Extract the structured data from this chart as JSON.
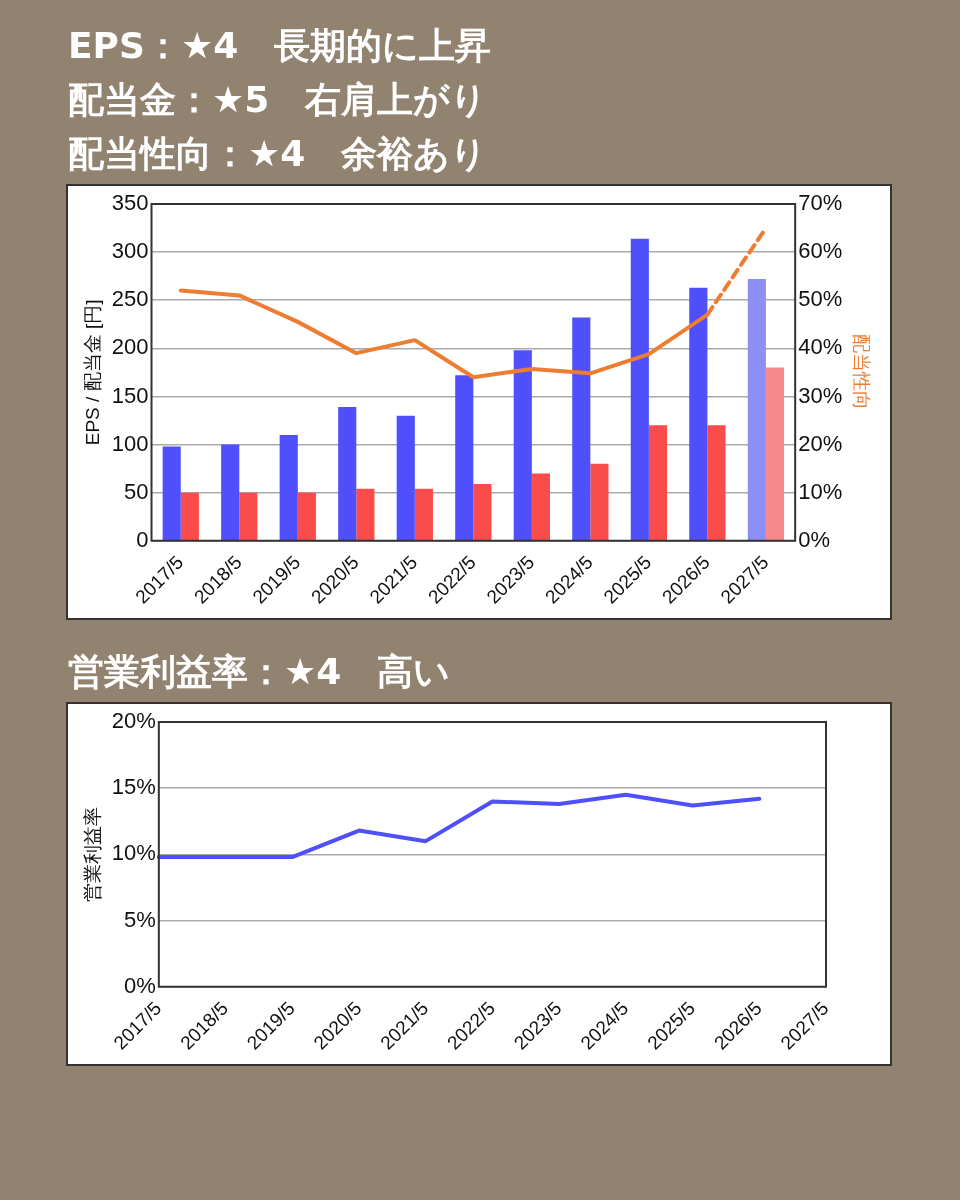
{
  "chart_data": [
    {
      "type": "bar",
      "title": "EPS：★4　長期的に上昇",
      "subtitle": "配当金：★5　右肩上がり",
      "annotations": [
        "配当性向：★4　余裕あり"
      ],
      "ylabel": "EPS / 配当金 [円]",
      "y2label": "配当性向",
      "categories": [
        "2017/5",
        "2018/5",
        "2019/5",
        "2020/5",
        "2021/5",
        "2022/5",
        "2023/5",
        "2024/5",
        "2025/5",
        "2026/5",
        "2027/5"
      ],
      "series": [
        {
          "colors": [
            "#4f4ffb",
            "#4f4ffb",
            "#4f4ffb",
            "#4f4ffb",
            "#4f4ffb",
            "#4f4ffb",
            "#4f4ffb",
            "#4f4ffb",
            "#4f4ffb",
            "#4f4ffb",
            "#8e8ef7"
          ],
          "values": [
            98,
            100,
            110,
            139,
            130,
            172,
            198,
            232,
            314,
            263,
            272
          ]
        },
        {
          "colors": [
            "#fb4c4c",
            "#fb4c4c",
            "#fb4c4c",
            "#fb4c4c",
            "#fb4c4c",
            "#fb4c4c",
            "#fb4c4c",
            "#fb4c4c",
            "#fb4c4c",
            "#fb4c4c",
            "#f7898e"
          ],
          "values": [
            50,
            50,
            50,
            54,
            54,
            59,
            70,
            80,
            120,
            120,
            180
          ]
        },
        {
          "type": "line",
          "axis": "y2",
          "color": "#ed7d31",
          "line_style": "solid",
          "values": [
            52,
            51,
            45.5,
            39,
            41.7,
            34,
            35.7,
            34.8,
            38.8,
            47,
            null
          ]
        },
        {
          "type": "line",
          "axis": "y2",
          "color": "#ed7d31",
          "line_style": "dashed",
          "values": [
            null,
            null,
            null,
            null,
            null,
            null,
            null,
            null,
            null,
            47,
            65
          ]
        }
      ],
      "ylim": [
        0,
        350
      ],
      "yticks": [
        0,
        50,
        100,
        150,
        200,
        250,
        300,
        350
      ],
      "y2lim": [
        0,
        70
      ],
      "y2ticks": [
        {
          "value": 0,
          "label": "0%"
        },
        {
          "value": 10,
          "label": "10%"
        },
        {
          "value": 20,
          "label": "20%"
        },
        {
          "value": 30,
          "label": "30%"
        },
        {
          "value": 40,
          "label": "40%"
        },
        {
          "value": 50,
          "label": "50%"
        },
        {
          "value": 60,
          "label": "60%"
        },
        {
          "value": 70,
          "label": "70%"
        }
      ],
      "grid": "y",
      "marker": "none"
    },
    {
      "type": "line",
      "title": "営業利益率：★4　高い",
      "ylabel": "営業利益率",
      "categories": [
        "2017/5",
        "2018/5",
        "2019/5",
        "2020/5",
        "2021/5",
        "2022/5",
        "2023/5",
        "2024/5",
        "2025/5",
        "2026/5",
        "2027/5"
      ],
      "series": [
        {
          "color": "#4f4ffb",
          "values": [
            9.8,
            9.8,
            9.8,
            11.8,
            11.0,
            14.0,
            13.8,
            14.5,
            13.7,
            14.2,
            null
          ]
        }
      ],
      "ylim": [
        0,
        20
      ],
      "yticks": [
        {
          "value": 0,
          "label": "0%"
        },
        {
          "value": 5,
          "label": "5%"
        },
        {
          "value": 10,
          "label": "10%"
        },
        {
          "value": 15,
          "label": "15%"
        },
        {
          "value": 20,
          "label": "20%"
        }
      ],
      "grid": "y",
      "marker": "none",
      "line_style": "solid"
    }
  ]
}
